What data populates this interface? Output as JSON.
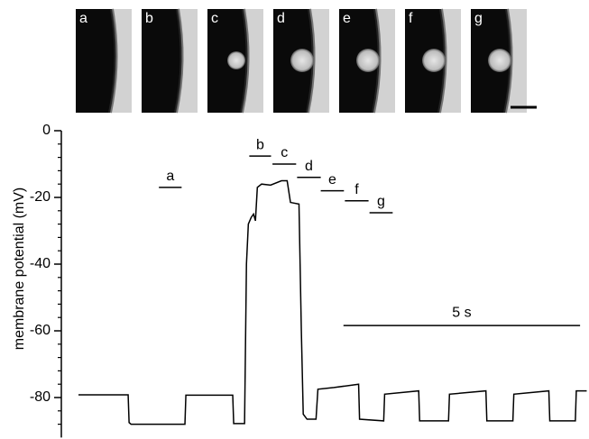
{
  "panels": [
    {
      "label": "a"
    },
    {
      "label": "b"
    },
    {
      "label": "c"
    },
    {
      "label": "d"
    },
    {
      "label": "e"
    },
    {
      "label": "f"
    },
    {
      "label": "g"
    }
  ],
  "chart_data": {
    "type": "line",
    "ylabel": "membrane potential (mV)",
    "color": "#000000",
    "xlim": [
      -0.4,
      10.8
    ],
    "ylim": [
      -92,
      0
    ],
    "yticks": [
      0,
      -20,
      -40,
      -60,
      -80
    ],
    "yminorticks": [
      -4,
      -8,
      -12,
      -16,
      -24,
      -28,
      -32,
      -36,
      -44,
      -48,
      -52,
      -56,
      -64,
      -68,
      -72,
      -76,
      -84,
      -88
    ],
    "x": [
      0,
      1.05,
      1.07,
      1.11,
      2.25,
      2.27,
      3.26,
      3.28,
      3.51,
      3.55,
      3.59,
      3.65,
      3.7,
      3.74,
      3.78,
      3.87,
      4.06,
      4.29,
      4.41,
      4.48,
      4.66,
      4.71,
      4.75,
      4.83,
      5.02,
      5.06,
      5.4,
      5.92,
      5.94,
      6.45,
      6.47,
      7.19,
      7.21,
      7.82,
      7.84,
      8.61,
      8.63,
      9.18,
      9.2,
      9.94,
      9.96,
      10.5,
      10.52,
      10.74
    ],
    "values": [
      -79.2,
      -79.2,
      -87.5,
      -88,
      -88,
      -79.3,
      -79.3,
      -87.8,
      -87.8,
      -40,
      -28,
      -26,
      -25,
      -27,
      -17,
      -16,
      -16.3,
      -15,
      -15,
      -21.5,
      -22,
      -60,
      -85,
      -86.5,
      -86.5,
      -77.5,
      -77,
      -76,
      -86.5,
      -87,
      -79,
      -78,
      -87,
      -87,
      -79,
      -78,
      -87,
      -87,
      -79,
      -78,
      -87,
      -87,
      -78,
      -78
    ],
    "annotations": [
      {
        "label": "a",
        "x": [
          1.7,
          2.18
        ],
        "y": -17
      },
      {
        "label": "b",
        "x": [
          3.61,
          4.07
        ],
        "y": -7.6
      },
      {
        "label": "c",
        "x": [
          4.1,
          4.6
        ],
        "y": -10
      },
      {
        "label": "d",
        "x": [
          4.62,
          5.12
        ],
        "y": -14
      },
      {
        "label": "e",
        "x": [
          5.12,
          5.61
        ],
        "y": -18
      },
      {
        "label": "f",
        "x": [
          5.63,
          6.13
        ],
        "y": -21
      },
      {
        "label": "g",
        "x": [
          6.15,
          6.64
        ],
        "y": -24.6
      }
    ],
    "scale_bar": {
      "value": 5,
      "label": "5 s",
      "x": 5.6,
      "y": -58.4
    }
  }
}
